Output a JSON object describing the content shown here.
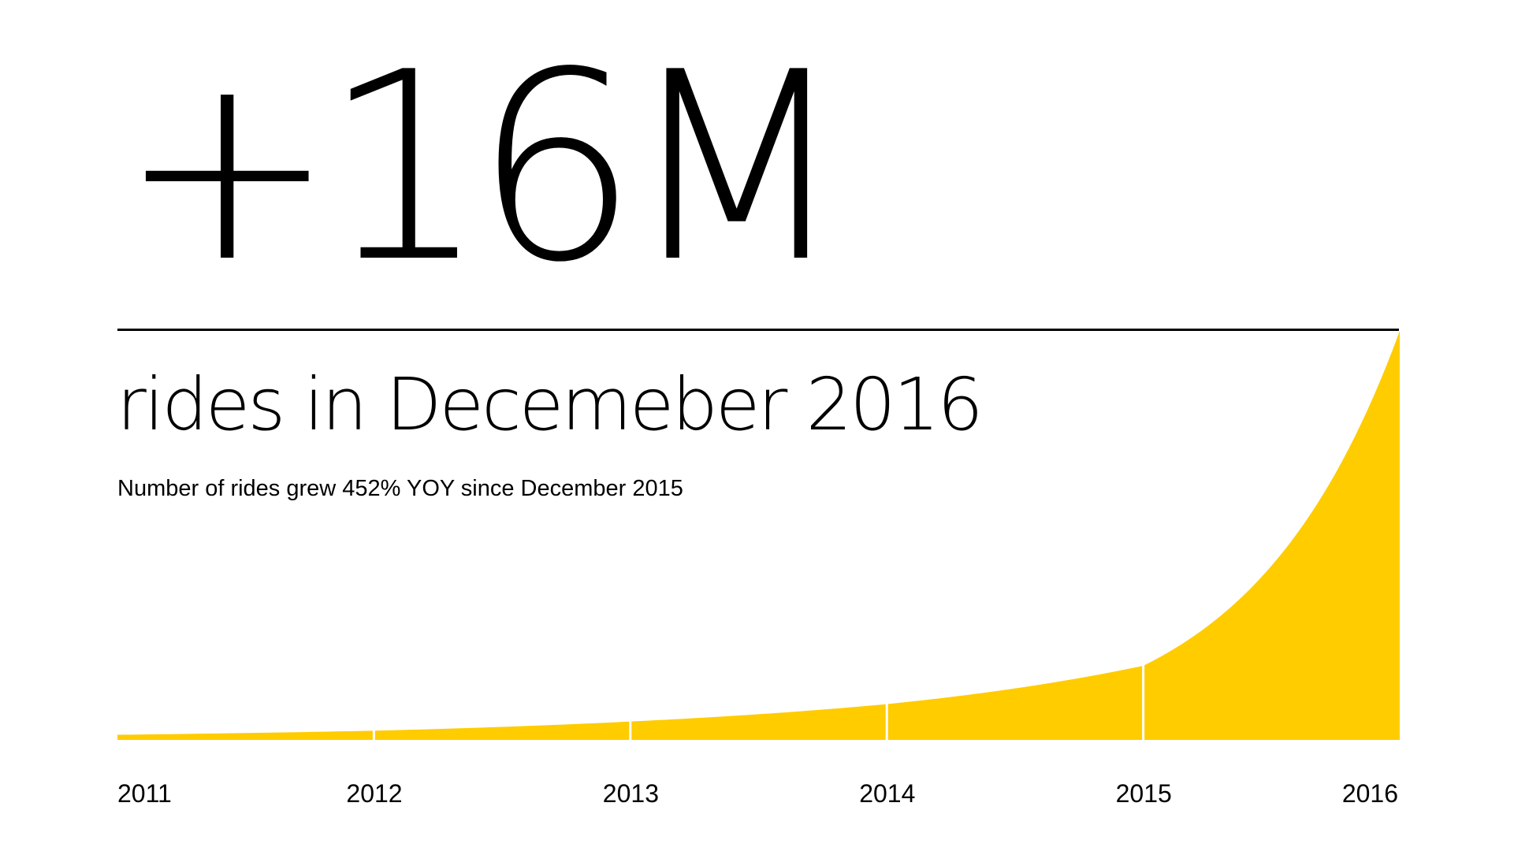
{
  "headline": "+16M",
  "subtitle": "rides in Decemeber 2016",
  "caption": "Number of rides grew 452% YOY since December 2015",
  "colors": {
    "accent": "#FFCC00",
    "text": "#000000",
    "background": "#FFFFFF"
  },
  "chart_data": {
    "type": "area",
    "title": "",
    "xlabel": "",
    "ylabel": "",
    "categories": [
      "2011",
      "2012",
      "2013",
      "2014",
      "2015",
      "2016"
    ],
    "values": [
      0.2,
      0.36,
      0.72,
      1.4,
      2.9,
      16
    ],
    "ylim": [
      0,
      16
    ],
    "grid": false,
    "legend": "none",
    "y_axis_shown": false
  }
}
